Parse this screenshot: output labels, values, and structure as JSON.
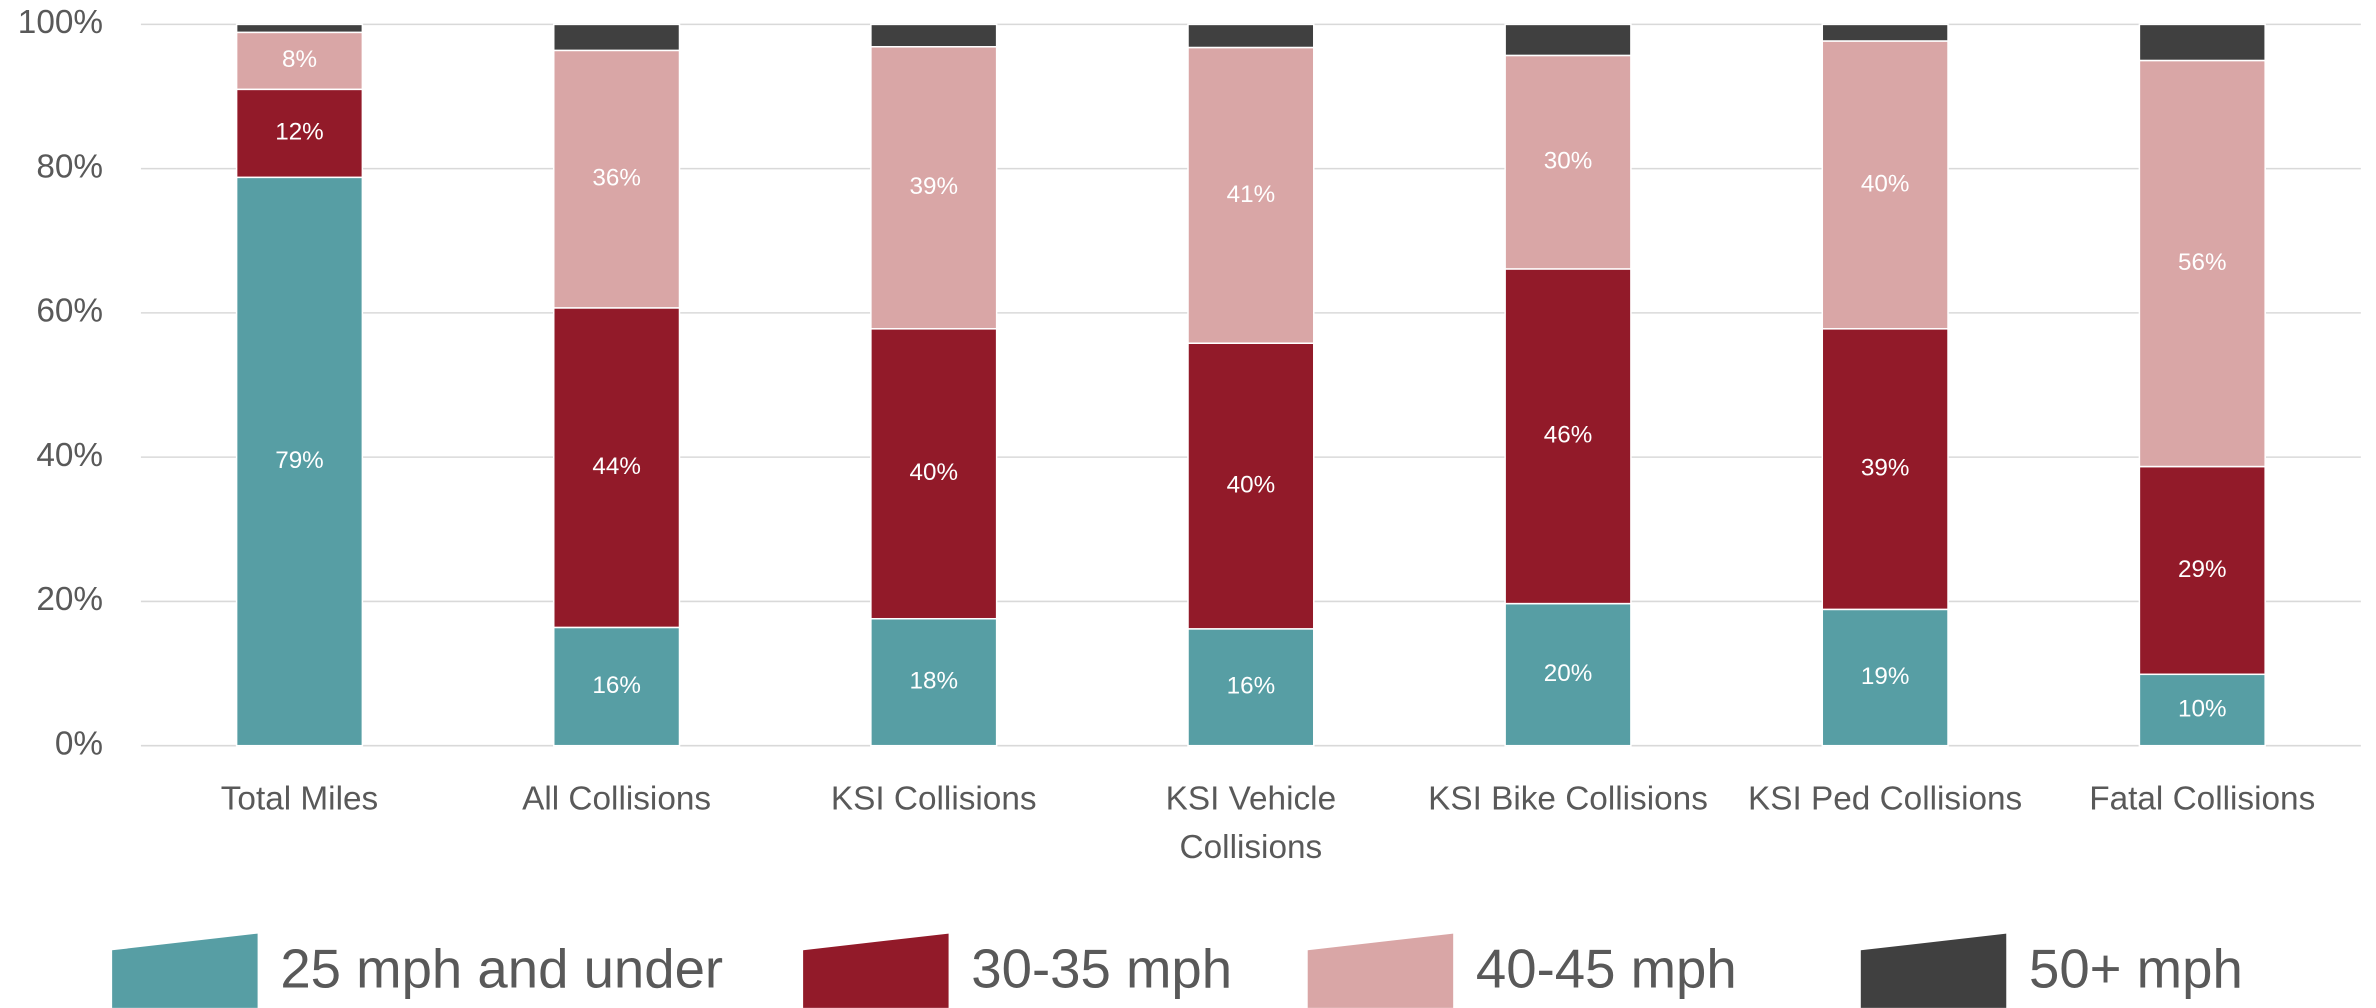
{
  "chart_data": {
    "type": "stacked_bar",
    "categories": [
      "Total Miles",
      "All Collisions",
      "KSI Collisions",
      "KSI Vehicle Collisions",
      "KSI Bike Collisions",
      "KSI Ped Collisions",
      "Fatal Collisions"
    ],
    "series": [
      {
        "name": "25 mph and under",
        "color": "#579ea4",
        "values": [
          78.8,
          16.4,
          17.6,
          16.2,
          19.7,
          18.9,
          9.9
        ],
        "value_labels": [
          "79%",
          "16%",
          "18%",
          "16%",
          "20%",
          "19%",
          "10%"
        ]
      },
      {
        "name": "30-35 mph",
        "color": "#921a29",
        "values": [
          12.2,
          44.3,
          40.2,
          39.6,
          46.4,
          38.9,
          28.8
        ],
        "value_labels": [
          "12%",
          "44%",
          "40%",
          "40%",
          "46%",
          "39%",
          "29%"
        ]
      },
      {
        "name": "40-45 mph",
        "color": "#d9a6a6",
        "values": [
          7.9,
          35.7,
          39.1,
          41.0,
          29.6,
          39.9,
          56.3
        ],
        "value_labels": [
          "8%",
          "36%",
          "39%",
          "41%",
          "30%",
          "40%",
          "56%"
        ]
      },
      {
        "name": "50+ mph",
        "color": "#404040",
        "values": [
          1.1,
          3.6,
          3.1,
          3.2,
          4.3,
          2.3,
          5.0
        ]
      }
    ],
    "ylim": [
      0,
      100
    ],
    "yticks": [
      {
        "value": 0,
        "label": "0%"
      },
      {
        "value": 20,
        "label": "20%"
      },
      {
        "value": 40,
        "label": "40%"
      },
      {
        "value": 60,
        "label": "60%"
      },
      {
        "value": 80,
        "label": "80%"
      },
      {
        "value": 100,
        "label": "100%"
      }
    ],
    "grid": true,
    "legend": "bottom"
  }
}
